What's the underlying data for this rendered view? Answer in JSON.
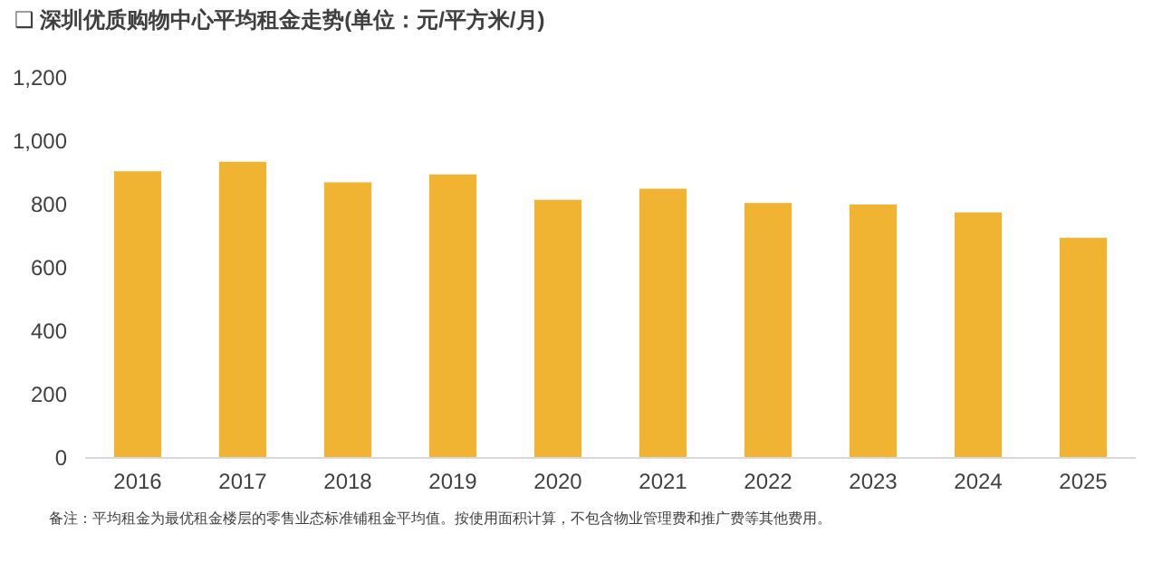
{
  "chart_data": {
    "type": "bar",
    "title": "❑ 深圳优质购物中心平均租金走势(单位：元/平方米/月)",
    "categories": [
      "2016",
      "2017",
      "2018",
      "2019",
      "2020",
      "2021",
      "2022",
      "2023",
      "2024",
      "2025"
    ],
    "values": [
      905,
      935,
      870,
      895,
      815,
      850,
      805,
      800,
      775,
      695
    ],
    "color": "#f0b432",
    "ylim": [
      0,
      1200
    ],
    "yticks": [
      0,
      200,
      400,
      600,
      800,
      {
        "value": 1000,
        "label": "1,000"
      },
      {
        "value": 1200,
        "label": "1,200"
      }
    ],
    "annotations": [
      "备注：平均租金为最优租金楼层的零售业态标准铺租金平均值。按使用面积计算，不包含物业管理费和推广费等其他费用。"
    ]
  }
}
